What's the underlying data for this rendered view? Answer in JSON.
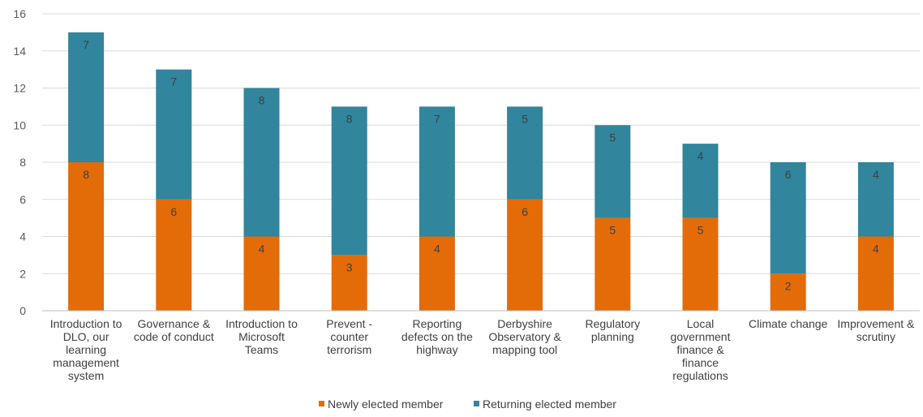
{
  "chart_data": {
    "type": "bar",
    "stacked": true,
    "title": "",
    "xlabel": "",
    "ylabel": "",
    "ylim": [
      0,
      16
    ],
    "yticks": [
      0,
      2,
      4,
      6,
      8,
      10,
      12,
      14,
      16
    ],
    "grid": true,
    "legend_position": "bottom",
    "categories": [
      "Introduction to DLO, our learning management system",
      "Governance & code of conduct",
      "Introduction to Microsoft Teams",
      "Prevent - counter terrorism",
      "Reporting defects on the highway",
      "Derbyshire Observatory & mapping tool",
      "Regulatory planning",
      "Local government finance & finance regulations",
      "Climate change",
      "Improvement & scrutiny"
    ],
    "series": [
      {
        "name": "Newly elected member",
        "color": "#E36C09",
        "values": [
          8,
          6,
          4,
          3,
          4,
          6,
          5,
          5,
          2,
          4
        ]
      },
      {
        "name": "Returning elected member",
        "color": "#31859C",
        "values": [
          7,
          7,
          8,
          8,
          7,
          5,
          5,
          4,
          6,
          4
        ]
      }
    ]
  }
}
